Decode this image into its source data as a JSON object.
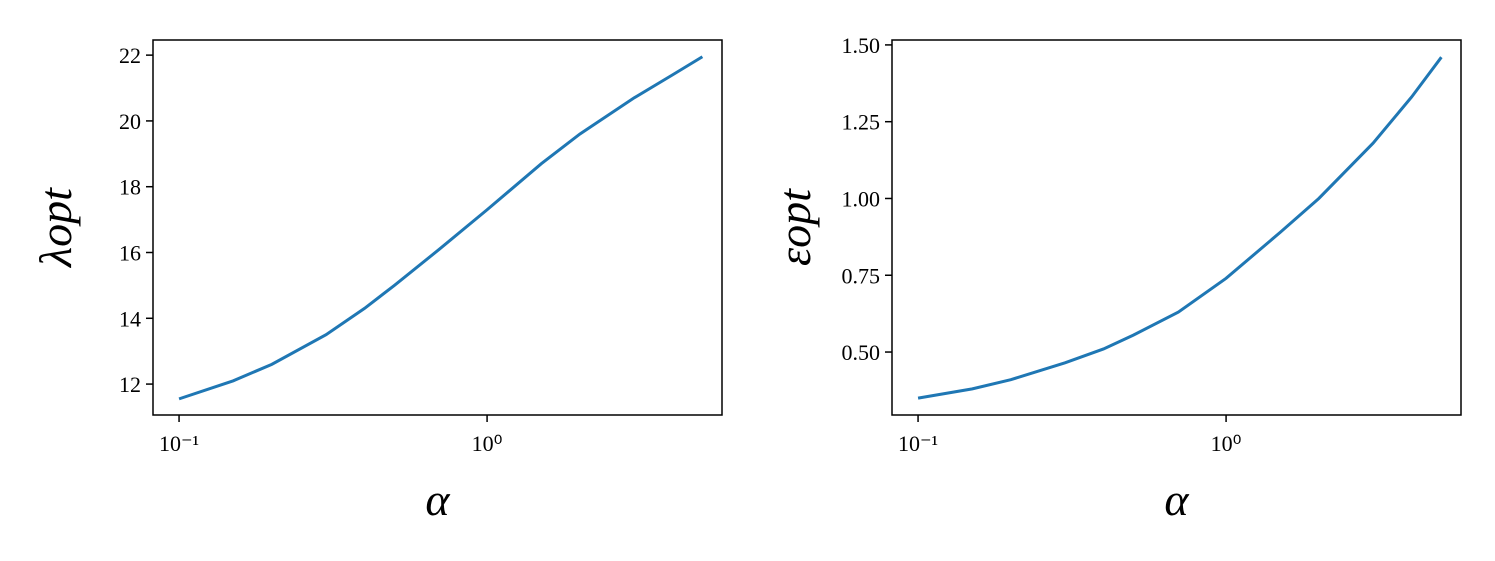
{
  "chart_data": [
    {
      "type": "line",
      "xlabel": "α",
      "ylabel": "λopt",
      "xscale": "log",
      "x": [
        0.1,
        0.15,
        0.2,
        0.3,
        0.4,
        0.5,
        0.7,
        1.0,
        1.5,
        2,
        3,
        4,
        5
      ],
      "series": [
        {
          "color": "#1f77b4",
          "values": [
            11.55,
            12.1,
            12.6,
            13.5,
            14.3,
            15.0,
            16.1,
            17.3,
            18.7,
            19.6,
            20.7,
            21.4,
            21.95
          ]
        }
      ],
      "xlim": [
        0.0823,
        5.79
      ],
      "xticks": [
        {
          "value": 0.1,
          "label": "10⁻¹"
        },
        {
          "value": 1,
          "label": "10⁰"
        }
      ],
      "ylim": [
        11.06,
        22.46
      ],
      "yticks": [
        12,
        14,
        16,
        18,
        20,
        22
      ]
    },
    {
      "type": "line",
      "xlabel": "α",
      "ylabel": "εopt",
      "xscale": "log",
      "x": [
        0.1,
        0.15,
        0.2,
        0.3,
        0.4,
        0.5,
        0.7,
        1.0,
        1.5,
        2,
        3,
        4,
        5
      ],
      "series": [
        {
          "color": "#1f77b4",
          "values": [
            0.35,
            0.38,
            0.41,
            0.465,
            0.51,
            0.555,
            0.63,
            0.74,
            0.89,
            1.0,
            1.18,
            1.33,
            1.46
          ]
        }
      ],
      "xlim": [
        0.0823,
        5.79
      ],
      "xticks": [
        {
          "value": 0.1,
          "label": "10⁻¹"
        },
        {
          "value": 1,
          "label": "10⁰"
        }
      ],
      "ylim": [
        0.295,
        1.516
      ],
      "yticks": [
        {
          "value": 0.5,
          "label": "0.50"
        },
        {
          "value": 0.75,
          "label": "0.75"
        },
        {
          "value": 1.0,
          "label": "1.00"
        },
        {
          "value": 1.25,
          "label": "1.25"
        },
        {
          "value": 1.5,
          "label": "1.50"
        }
      ]
    }
  ]
}
